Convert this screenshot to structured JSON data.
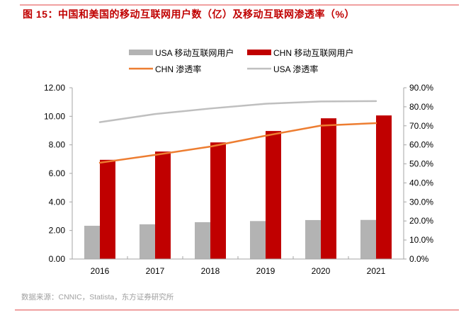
{
  "figure": {
    "title": "图 15：中国和美国的移动互联网用户数（亿）及移动互联网渗透率（%）",
    "source": "数据来源：CNNIC，Statista，东方证券研究所"
  },
  "colors": {
    "usa_bar": "#b3b3b3",
    "chn_bar": "#c00000",
    "chn_line": "#ed7d31",
    "usa_line": "#bfbfbf",
    "title": "#c00000",
    "rule": "#f0a0a0",
    "axis": "#a6a6a6"
  },
  "chart_data": {
    "type": "bar",
    "title": "",
    "xlabel": "",
    "ylabel": "",
    "categories": [
      "2016",
      "2017",
      "2018",
      "2019",
      "2020",
      "2021"
    ],
    "series": [
      {
        "name": "USA 移动互联网用户",
        "kind": "bar",
        "axis": "left",
        "color_key": "usa_bar",
        "values": [
          2.33,
          2.43,
          2.58,
          2.66,
          2.73,
          2.74
        ]
      },
      {
        "name": "CHN 移动互联网用户",
        "kind": "bar",
        "axis": "left",
        "color_key": "chn_bar",
        "values": [
          6.95,
          7.53,
          8.17,
          8.97,
          9.86,
          10.06
        ]
      },
      {
        "name": "CHN 渗透率",
        "kind": "line",
        "axis": "right",
        "color_key": "chn_line",
        "values": [
          50.6,
          54.7,
          59.1,
          64.8,
          70.1,
          71.4
        ]
      },
      {
        "name": "USA 渗透率",
        "kind": "line",
        "axis": "right",
        "color_key": "usa_line",
        "values": [
          71.9,
          76.2,
          79.1,
          81.6,
          82.8,
          83.0
        ]
      }
    ],
    "left_axis": {
      "ylim": [
        0,
        12
      ],
      "ticks": [
        0,
        2,
        4,
        6,
        8,
        10,
        12
      ],
      "tick_labels": [
        "0.00",
        "2.00",
        "4.00",
        "6.00",
        "8.00",
        "10.00",
        "12.00"
      ]
    },
    "right_axis": {
      "ylim": [
        0,
        90
      ],
      "ticks": [
        0,
        10,
        20,
        30,
        40,
        50,
        60,
        70,
        80,
        90
      ],
      "tick_labels": [
        "0.0%",
        "10.0%",
        "20.0%",
        "30.0%",
        "40.0%",
        "50.0%",
        "60.0%",
        "70.0%",
        "80.0%",
        "90.0%"
      ]
    },
    "legend": {
      "placement": "top-center",
      "rows": [
        [
          "USA 移动互联网用户",
          "CHN 移动互联网用户"
        ],
        [
          "CHN 渗透率",
          "USA 渗透率"
        ]
      ]
    },
    "grid": false
  }
}
